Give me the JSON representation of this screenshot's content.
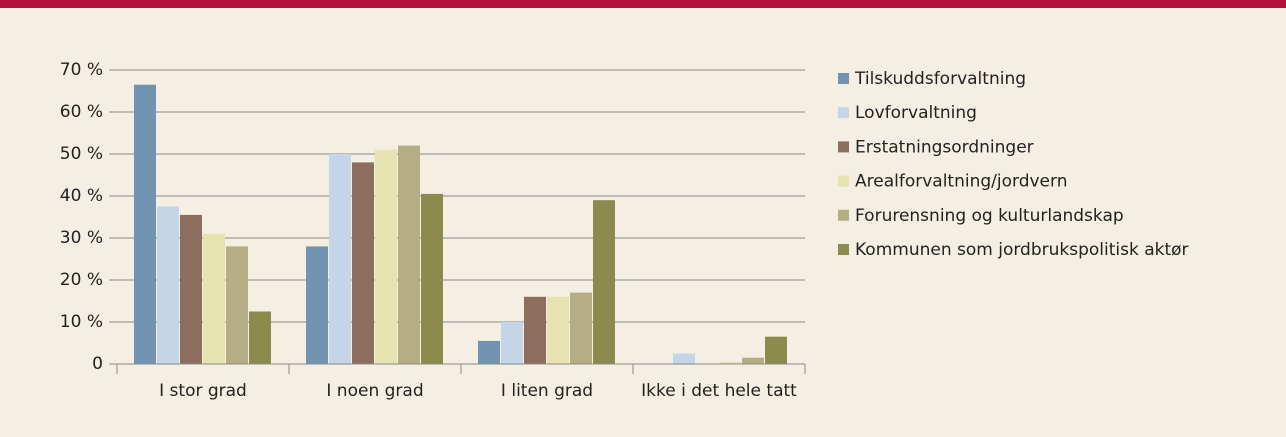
{
  "chart_data": {
    "type": "bar",
    "categories": [
      "I stor grad",
      "I noen grad",
      "I liten grad",
      "Ikke i det hele tatt"
    ],
    "series": [
      {
        "name": "Tilskuddsforvaltning",
        "color": "#7393b3",
        "values": [
          66.5,
          28,
          5.5,
          0
        ]
      },
      {
        "name": "Lovforvaltning",
        "color": "#c5d5e8",
        "values": [
          37.5,
          50,
          10,
          2.5
        ]
      },
      {
        "name": "Erstatningsordninger",
        "color": "#8b6e5e",
        "values": [
          35.5,
          48,
          16,
          0
        ]
      },
      {
        "name": "Arealforvaltning/jordvern",
        "color": "#e7e3b0",
        "values": [
          31,
          51,
          16,
          0.5
        ]
      },
      {
        "name": "Forurensning og kulturlandskap",
        "color": "#b5ae84",
        "values": [
          28,
          52,
          17,
          1.5
        ]
      },
      {
        "name": "Kommunen som jordbrukspolitisk aktør",
        "color": "#8c8a4d",
        "values": [
          12.5,
          40.5,
          39,
          6.5
        ]
      }
    ],
    "ylim": [
      0,
      70
    ],
    "yticks": [
      0,
      {
        "value": 10,
        "label": "10 %"
      },
      {
        "value": 20,
        "label": "20 %"
      },
      {
        "value": 30,
        "label": "30 %"
      },
      {
        "value": 40,
        "label": "40 %"
      },
      {
        "value": 50,
        "label": "50 %"
      },
      {
        "value": 60,
        "label": "60 %"
      },
      {
        "value": 70,
        "label": "70 %"
      }
    ],
    "grid": true,
    "legend": "right"
  }
}
